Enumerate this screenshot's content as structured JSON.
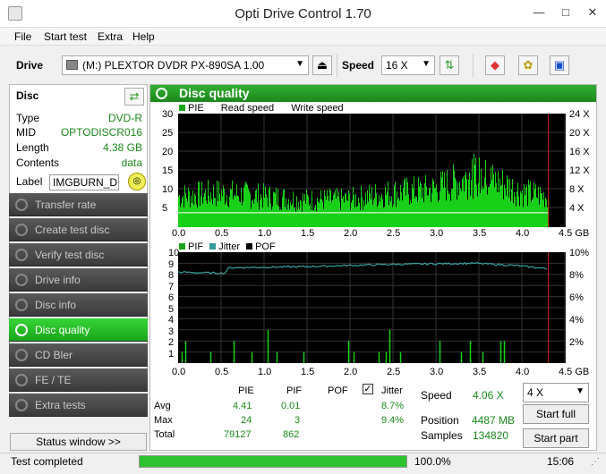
{
  "window": {
    "title": "Opti Drive Control 1.70",
    "minimize_icon": "minimize-icon",
    "maximize_icon": "maximize-icon",
    "close_icon": "close-icon"
  },
  "menu": [
    "File",
    "Start test",
    "Extra",
    "Help"
  ],
  "toolbar": {
    "drive_label": "Drive",
    "drive_value": "(M:)  PLEXTOR DVDR   PX-890SA 1.00",
    "speed_label": "Speed",
    "speed_value": "16 X"
  },
  "disc": {
    "heading": "Disc",
    "type_label": "Type",
    "type_value": "DVD-R",
    "mid_label": "MID",
    "mid_value": "OPTODISCR016",
    "length_label": "Length",
    "length_value": "4.38 GB",
    "contents_label": "Contents",
    "contents_value": "data",
    "label_label": "Label",
    "label_value": "IMGBURN_DIS"
  },
  "nav": [
    "Transfer rate",
    "Create test disc",
    "Verify test disc",
    "Drive info",
    "Disc info",
    "Disc quality",
    "CD Bler",
    "FE / TE",
    "Extra tests"
  ],
  "nav_active_index": 5,
  "status_window_label": "Status window >>",
  "panel_title": "Disc quality",
  "chart_data": [
    {
      "type": "area",
      "series": [
        {
          "name": "PIE"
        },
        {
          "name": "Read speed"
        },
        {
          "name": "Write speed"
        }
      ],
      "x_ticks": [
        "0.0",
        "0.5",
        "1.0",
        "1.5",
        "2.0",
        "2.5",
        "3.0",
        "3.5",
        "4.0",
        "4.5 GB"
      ],
      "y_left_ticks": [
        "30",
        "25",
        "20",
        "15",
        "10",
        "5"
      ],
      "y_right_ticks": [
        "24 X",
        "20 X",
        "16 X",
        "12 X",
        "8 X",
        "4 X"
      ],
      "xlim": [
        0,
        4.5
      ],
      "ylim": [
        0,
        30
      ],
      "speed_line": 4.06,
      "pie_profile": [
        [
          0.0,
          9
        ],
        [
          0.5,
          10
        ],
        [
          1.0,
          9
        ],
        [
          1.5,
          8
        ],
        [
          2.0,
          8
        ],
        [
          2.5,
          10
        ],
        [
          3.0,
          11
        ],
        [
          3.5,
          15
        ],
        [
          3.8,
          13
        ],
        [
          4.1,
          10
        ],
        [
          4.38,
          9
        ]
      ],
      "pie_max": 24,
      "end_marker": 4.38
    },
    {
      "type": "bar",
      "series": [
        {
          "name": "PIF"
        },
        {
          "name": "Jitter"
        },
        {
          "name": "POF"
        }
      ],
      "x_ticks": [
        "0.0",
        "0.5",
        "1.0",
        "1.5",
        "2.0",
        "2.5",
        "3.0",
        "3.5",
        "4.0",
        "4.5 GB"
      ],
      "y_left_ticks": [
        "10",
        "9",
        "8",
        "7",
        "6",
        "5",
        "4",
        "3",
        "2",
        "1"
      ],
      "y_right_ticks": [
        "10%",
        "8%",
        "6%",
        "4%",
        "2%"
      ],
      "xlim": [
        0,
        4.5
      ],
      "ylim": [
        0,
        10
      ],
      "jitter_profile": [
        [
          0.0,
          8.2
        ],
        [
          0.55,
          8.1
        ],
        [
          0.6,
          8.6
        ],
        [
          1.5,
          8.7
        ],
        [
          2.5,
          8.9
        ],
        [
          3.5,
          9.0
        ],
        [
          4.0,
          8.8
        ],
        [
          4.38,
          8.5
        ]
      ],
      "pif_max": 3,
      "end_marker": 4.38
    }
  ],
  "stats": {
    "headers": {
      "pie": "PIE",
      "pif": "PIF",
      "pof": "POF",
      "jitter": "Jitter"
    },
    "rows": [
      {
        "label": "Avg",
        "pie": "4.41",
        "pif": "0.01",
        "jitter": "8.7%"
      },
      {
        "label": "Max",
        "pie": "24",
        "pif": "3",
        "jitter": "9.4%"
      },
      {
        "label": "Total",
        "pie": "79127",
        "pif": "862"
      }
    ],
    "jitter_checked": true
  },
  "right": {
    "speed_label": "Speed",
    "speed_value": "4.06 X",
    "position_label": "Position",
    "position_value": "4487 MB",
    "samples_label": "Samples",
    "samples_value": "134820",
    "speed_select": "4 X",
    "start_full": "Start full",
    "start_part": "Start part"
  },
  "status": {
    "text": "Test completed",
    "progress_text": "100.0%",
    "progress": 1.0,
    "time": "15:06"
  }
}
